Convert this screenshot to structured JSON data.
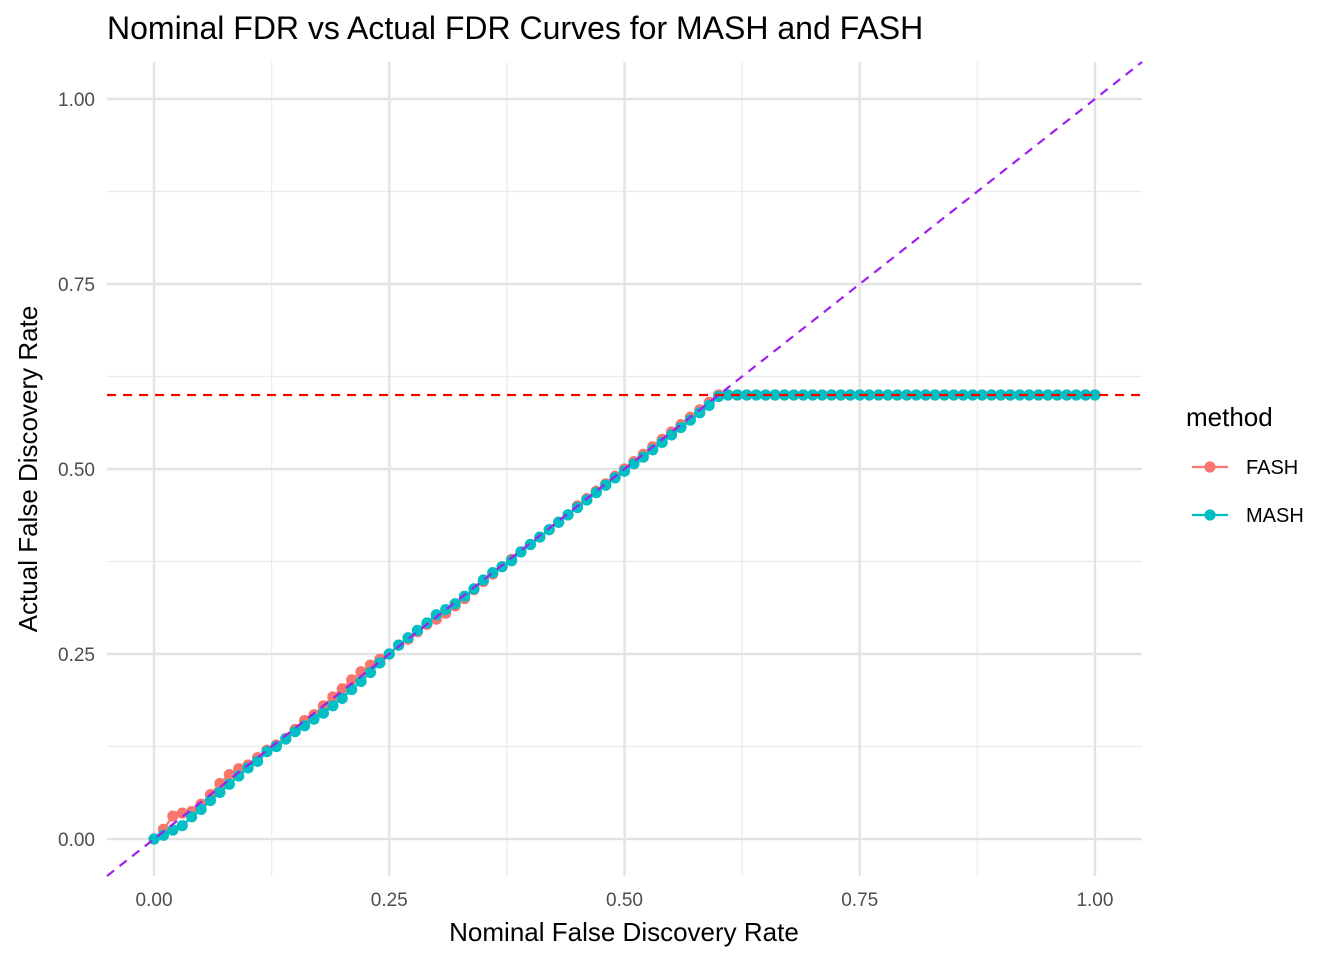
{
  "chart_data": {
    "type": "line",
    "title": "Nominal FDR vs Actual FDR Curves for MASH and FASH",
    "xlabel": "Nominal False Discovery Rate",
    "ylabel": "Actual False Discovery Rate",
    "xlim": [
      -0.05,
      1.05
    ],
    "ylim": [
      -0.05,
      1.05
    ],
    "x_ticks": [
      "0.00",
      "0.25",
      "0.50",
      "0.75",
      "1.00"
    ],
    "y_ticks": [
      "0.00",
      "0.25",
      "0.50",
      "0.75",
      "1.00"
    ],
    "grid": true,
    "legend": {
      "title": "method",
      "position": "right"
    },
    "x": [
      0.0,
      0.01,
      0.02,
      0.03,
      0.04,
      0.05,
      0.06,
      0.07,
      0.08,
      0.09,
      0.1,
      0.11,
      0.12,
      0.13,
      0.14,
      0.15,
      0.16,
      0.17,
      0.18,
      0.19,
      0.2,
      0.21,
      0.22,
      0.23,
      0.24,
      0.25,
      0.26,
      0.27,
      0.28,
      0.29,
      0.3,
      0.31,
      0.32,
      0.33,
      0.34,
      0.35,
      0.36,
      0.37,
      0.38,
      0.39,
      0.4,
      0.41,
      0.42,
      0.43,
      0.44,
      0.45,
      0.46,
      0.47,
      0.48,
      0.49,
      0.5,
      0.51,
      0.52,
      0.53,
      0.54,
      0.55,
      0.56,
      0.57,
      0.58,
      0.59,
      0.6,
      0.61,
      0.62,
      0.63,
      0.64,
      0.65,
      0.66,
      0.67,
      0.68,
      0.69,
      0.7,
      0.71,
      0.72,
      0.73,
      0.74,
      0.75,
      0.76,
      0.77,
      0.78,
      0.79,
      0.8,
      0.81,
      0.82,
      0.83,
      0.84,
      0.85,
      0.86,
      0.87,
      0.88,
      0.89,
      0.9,
      0.91,
      0.92,
      0.93,
      0.94,
      0.95,
      0.96,
      0.97,
      0.98,
      0.99,
      1.0
    ],
    "series": [
      {
        "name": "FASH",
        "color": "#F8766D",
        "values": [
          0.0,
          0.013,
          0.031,
          0.035,
          0.037,
          0.047,
          0.06,
          0.075,
          0.087,
          0.095,
          0.1,
          0.11,
          0.12,
          0.127,
          0.136,
          0.148,
          0.16,
          0.168,
          0.18,
          0.192,
          0.203,
          0.215,
          0.226,
          0.235,
          0.243,
          0.25,
          0.262,
          0.27,
          0.28,
          0.29,
          0.297,
          0.305,
          0.315,
          0.325,
          0.337,
          0.348,
          0.358,
          0.368,
          0.378,
          0.388,
          0.398,
          0.408,
          0.418,
          0.428,
          0.438,
          0.45,
          0.46,
          0.47,
          0.48,
          0.49,
          0.5,
          0.51,
          0.52,
          0.53,
          0.54,
          0.55,
          0.56,
          0.57,
          0.58,
          0.59,
          0.6,
          0.6,
          0.6,
          0.6,
          0.6,
          0.6,
          0.6,
          0.6,
          0.6,
          0.6,
          0.6,
          0.6,
          0.6,
          0.6,
          0.6,
          0.6,
          0.6,
          0.6,
          0.6,
          0.6,
          0.6,
          0.6,
          0.6,
          0.6,
          0.6,
          0.6,
          0.6,
          0.6,
          0.6,
          0.6,
          0.6,
          0.6,
          0.6,
          0.6,
          0.6,
          0.6,
          0.6,
          0.6,
          0.6,
          0.6,
          0.6
        ]
      },
      {
        "name": "MASH",
        "color": "#00BFC4",
        "values": [
          0.0,
          0.005,
          0.012,
          0.018,
          0.03,
          0.04,
          0.052,
          0.063,
          0.074,
          0.085,
          0.096,
          0.105,
          0.118,
          0.125,
          0.135,
          0.145,
          0.153,
          0.162,
          0.17,
          0.18,
          0.19,
          0.202,
          0.213,
          0.225,
          0.238,
          0.25,
          0.262,
          0.272,
          0.282,
          0.292,
          0.303,
          0.31,
          0.318,
          0.328,
          0.338,
          0.35,
          0.36,
          0.368,
          0.376,
          0.388,
          0.398,
          0.408,
          0.418,
          0.428,
          0.438,
          0.448,
          0.458,
          0.468,
          0.478,
          0.488,
          0.497,
          0.507,
          0.516,
          0.526,
          0.536,
          0.546,
          0.556,
          0.566,
          0.576,
          0.586,
          0.598,
          0.6,
          0.6,
          0.6,
          0.6,
          0.6,
          0.6,
          0.6,
          0.6,
          0.6,
          0.6,
          0.6,
          0.6,
          0.6,
          0.6,
          0.6,
          0.6,
          0.6,
          0.6,
          0.6,
          0.6,
          0.6,
          0.6,
          0.6,
          0.6,
          0.6,
          0.6,
          0.6,
          0.6,
          0.6,
          0.6,
          0.6,
          0.6,
          0.6,
          0.6,
          0.6,
          0.6,
          0.6,
          0.6,
          0.6,
          0.6
        ]
      }
    ],
    "reference_lines": [
      {
        "kind": "horizontal",
        "y": 0.6,
        "color": "#FF0000",
        "style": "dashed"
      },
      {
        "kind": "diagonal",
        "slope": 1,
        "intercept": 0,
        "color": "#A020F0",
        "style": "dashed"
      }
    ]
  }
}
